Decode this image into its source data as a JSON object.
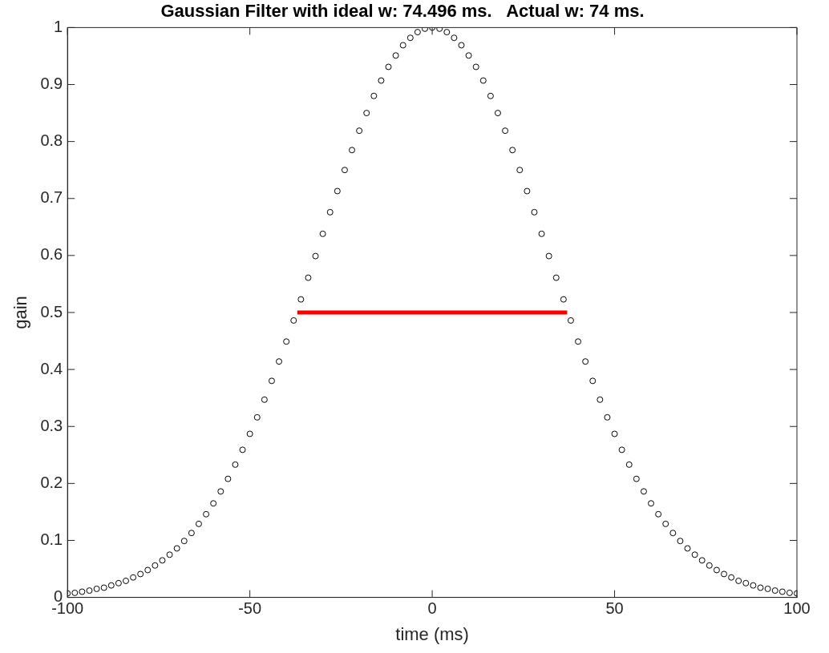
{
  "chart_data": {
    "type": "scatter",
    "title": "Gaussian Filter with ideal w: 74.496 ms.   Actual w: 74 ms.",
    "xlabel": "time (ms)",
    "ylabel": "gain",
    "xlim": [
      -100,
      100
    ],
    "xticks": [
      -100,
      -50,
      0,
      50,
      100
    ],
    "ylim": [
      0,
      1
    ],
    "yticks": [
      0,
      0.1,
      0.2,
      0.3,
      0.4,
      0.5,
      0.6,
      0.7,
      0.8,
      0.9,
      1
    ],
    "grid": false,
    "legend": false,
    "marker": "circle",
    "series": [
      {
        "color": "#000000",
        "x": [
          -100,
          -98,
          -96,
          -94,
          -92,
          -90,
          -88,
          -86,
          -84,
          -82,
          -80,
          -78,
          -76,
          -74,
          -72,
          -70,
          -68,
          -66,
          -64,
          -62,
          -60,
          -58,
          -56,
          -54,
          -52,
          -50,
          -48,
          -46,
          -44,
          -42,
          -40,
          -38,
          -36,
          -34,
          -32,
          -30,
          -28,
          -26,
          -24,
          -22,
          -20,
          -18,
          -16,
          -14,
          -12,
          -10,
          -8,
          -6,
          -4,
          -2,
          0,
          2,
          4,
          6,
          8,
          10,
          12,
          14,
          16,
          18,
          20,
          22,
          24,
          26,
          28,
          30,
          32,
          34,
          36,
          38,
          40,
          42,
          44,
          46,
          48,
          50,
          52,
          54,
          56,
          58,
          60,
          62,
          64,
          66,
          68,
          70,
          72,
          74,
          76,
          78,
          80,
          82,
          84,
          86,
          88,
          90,
          92,
          94,
          96,
          98,
          100
        ],
        "values": [
          0.007,
          0.008,
          0.01,
          0.012,
          0.015,
          0.017,
          0.021,
          0.025,
          0.029,
          0.035,
          0.041,
          0.048,
          0.056,
          0.065,
          0.075,
          0.086,
          0.099,
          0.113,
          0.129,
          0.146,
          0.165,
          0.186,
          0.208,
          0.233,
          0.259,
          0.287,
          0.316,
          0.347,
          0.38,
          0.414,
          0.449,
          0.486,
          0.523,
          0.561,
          0.599,
          0.638,
          0.676,
          0.713,
          0.75,
          0.785,
          0.819,
          0.85,
          0.88,
          0.907,
          0.931,
          0.951,
          0.969,
          0.982,
          0.992,
          0.998,
          1,
          0.998,
          0.992,
          0.982,
          0.969,
          0.951,
          0.931,
          0.907,
          0.88,
          0.85,
          0.819,
          0.785,
          0.75,
          0.713,
          0.676,
          0.638,
          0.599,
          0.561,
          0.523,
          0.486,
          0.449,
          0.414,
          0.38,
          0.347,
          0.316,
          0.287,
          0.259,
          0.233,
          0.208,
          0.186,
          0.165,
          0.146,
          0.129,
          0.113,
          0.099,
          0.086,
          0.075,
          0.065,
          0.056,
          0.048,
          0.041,
          0.035,
          0.029,
          0.025,
          0.021,
          0.017,
          0.015,
          0.012,
          0.01,
          0.008,
          0.007
        ]
      },
      {
        "type": "line",
        "color": "#ff0000",
        "marker": "none",
        "x": [
          -37,
          37
        ],
        "values": [
          0.5,
          0.5
        ]
      }
    ]
  }
}
